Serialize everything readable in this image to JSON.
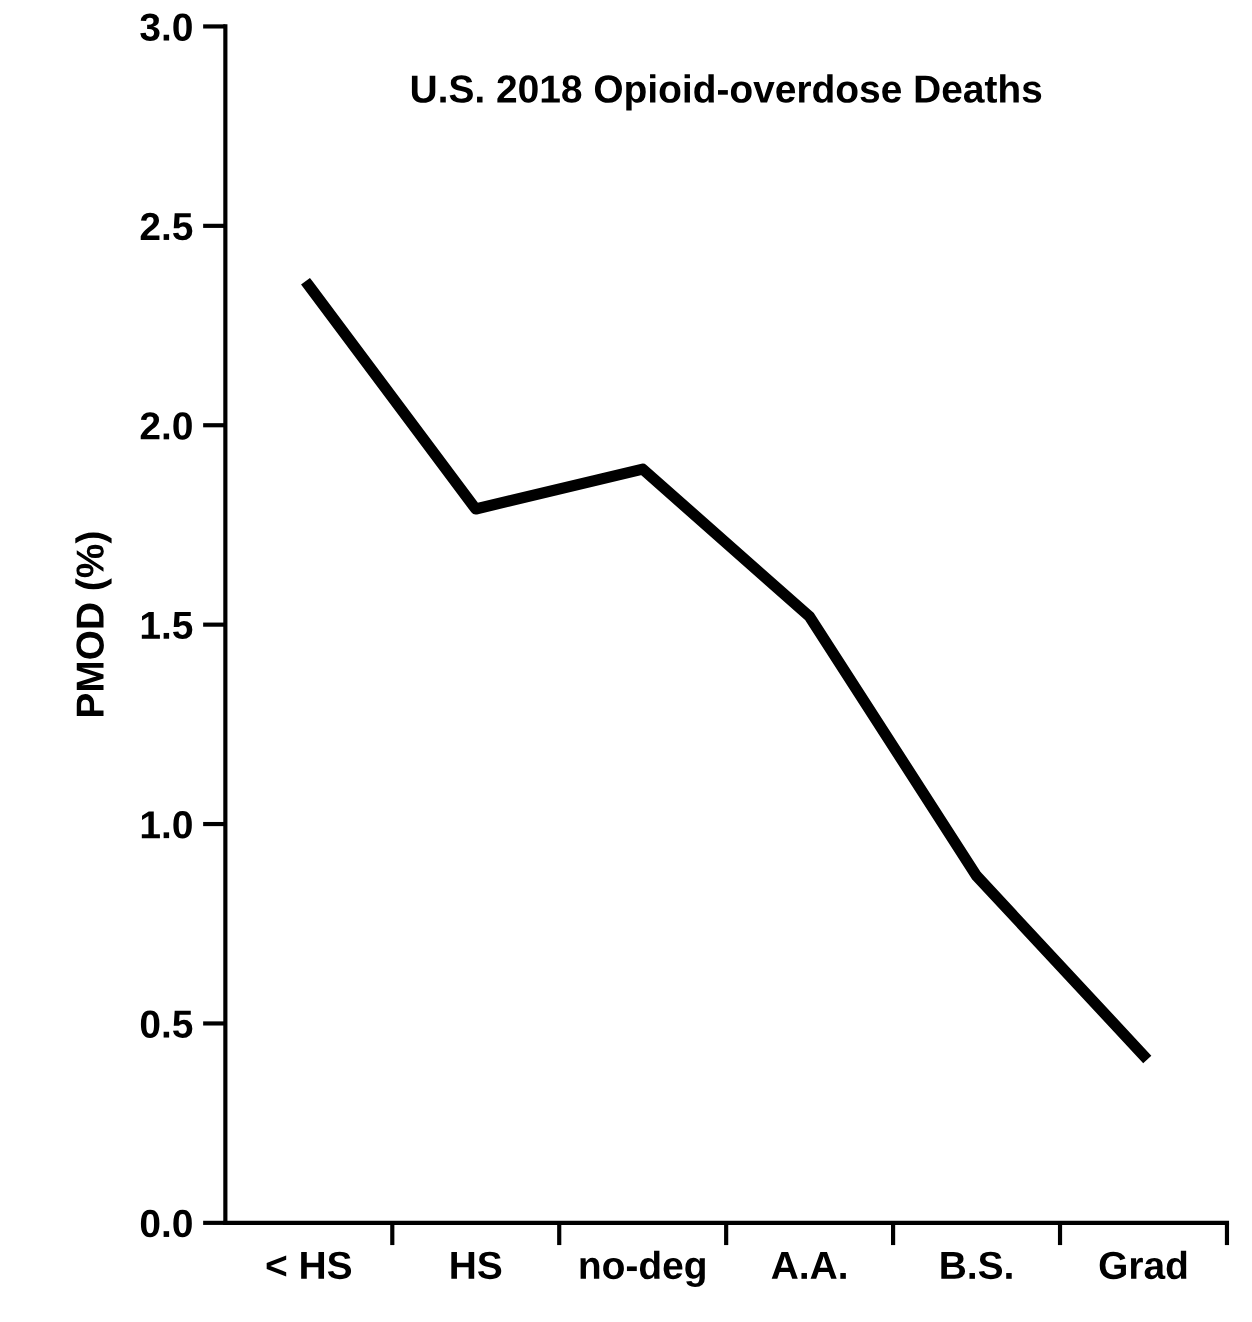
{
  "chart_data": {
    "type": "line",
    "title": "U.S. 2018 Opioid-overdose Deaths",
    "ylabel": "PMOD (%)",
    "categories": [
      "< HS",
      "HS",
      "no-deg",
      "A.A.",
      "B.S.",
      "Grad"
    ],
    "series": [
      {
        "color": "#000000",
        "values": [
          2.35,
          1.79,
          1.89,
          1.52,
          0.87,
          0.42
        ]
      }
    ],
    "ylim": [
      0,
      3.0
    ],
    "yticks": [
      {
        "value": 0,
        "label": "0.0"
      },
      0.5,
      {
        "value": 1,
        "label": "1.0"
      },
      1.5,
      {
        "value": 2,
        "label": "2.0"
      },
      2.5,
      {
        "value": 3,
        "label": "3.0"
      }
    ],
    "grid": false,
    "legend": false,
    "marker": "none",
    "line_style": "solid"
  }
}
